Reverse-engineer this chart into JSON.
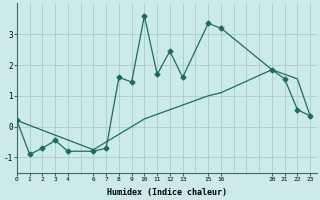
{
  "xlabel": "Humidex (Indice chaleur)",
  "background_color": "#cceae8",
  "grid_color": "#aacccc",
  "line_color": "#1a6e60",
  "series1_x": [
    0,
    1,
    2,
    3,
    4,
    6,
    7,
    8,
    9,
    10,
    11,
    12,
    13,
    15,
    16,
    20,
    21,
    22,
    23
  ],
  "series1_y": [
    0.2,
    -0.9,
    -0.7,
    -0.45,
    -0.8,
    -0.8,
    -0.7,
    1.6,
    1.45,
    3.6,
    1.7,
    2.45,
    1.6,
    3.35,
    3.2,
    1.85,
    1.55,
    0.55,
    0.35
  ],
  "series2_x": [
    0,
    6,
    10,
    15,
    16,
    20,
    22,
    23
  ],
  "series2_y": [
    0.2,
    -0.75,
    0.25,
    1.0,
    1.1,
    1.85,
    1.55,
    0.35
  ],
  "xlim": [
    0,
    23.5
  ],
  "ylim": [
    -1.5,
    4.0
  ],
  "yticks": [
    -1,
    0,
    1,
    2,
    3
  ],
  "xtick_positions": [
    0,
    1,
    2,
    3,
    4,
    6,
    7,
    8,
    9,
    10,
    11,
    12,
    13,
    15,
    16,
    20,
    21,
    22,
    23
  ],
  "xtick_labels": [
    "0",
    "1",
    "2",
    "3",
    "4",
    "6",
    "7",
    "8",
    "9",
    "10",
    "11",
    "12",
    "13",
    "15",
    "16",
    "20",
    "21",
    "22",
    "23"
  ]
}
